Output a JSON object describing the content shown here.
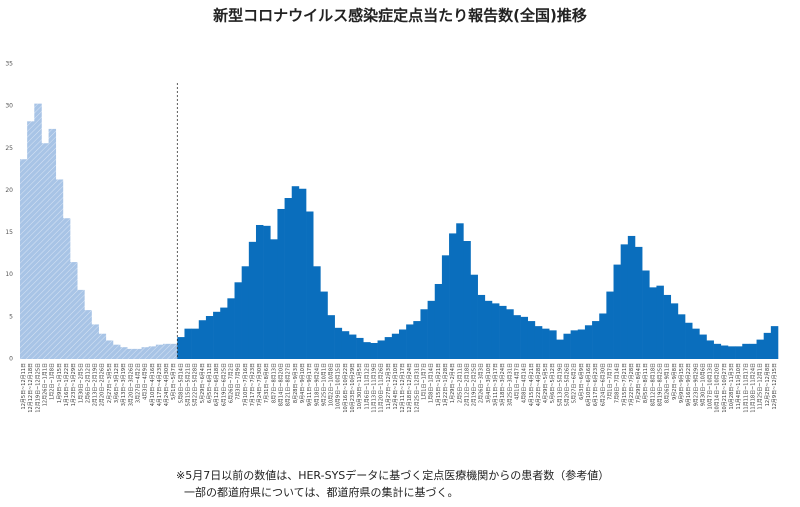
{
  "chart_data": {
    "type": "bar",
    "title": "新型コロナウイルス感染症定点当たり報告数(全国)推移",
    "notes": [
      "※5月7日以前の数値は、HER-SYSデータに基づく定点医療機関からの患者数（参考値）",
      "一部の都道府県については、都道府県の集計に基づく。"
    ],
    "categories": [
      "12月5日~12月11日",
      "12月12日~12月18日",
      "12月19日~12月25日",
      "12月26日~1月1日",
      "1月2日~1月8日",
      "1月9日~1月15日",
      "1月16日~1月22日",
      "1月23日~1月29日",
      "1月30日~2月5日",
      "2月6日~2月12日",
      "2月13日~2月19日",
      "2月20日~2月26日",
      "2月27日~3月5日",
      "3月6日~3月12日",
      "3月13日~3月19日",
      "3月20日~3月26日",
      "3月27日~4月2日",
      "4月3日~4月9日",
      "4月10日~4月16日",
      "4月17日~4月23日",
      "4月24日~4月30日",
      "5月1日~5月7日",
      "5月8日~5月14日",
      "5月15日~5月21日",
      "5月22日~5月28日",
      "5月29日~6月4日",
      "6月5日~6月11日",
      "6月12日~6月18日",
      "6月19日~6月25日",
      "6月26日~7月2日",
      "7月3日~7月9日",
      "7月10日~7月16日",
      "7月17日~7月23日",
      "7月24日~7月30日",
      "7月31日~8月6日",
      "8月7日~8月13日",
      "8月14日~8月20日",
      "8月21日~8月27日",
      "8月28日~9月3日",
      "9月4日~9月10日",
      "9月11日~9月17日",
      "9月18日~9月24日",
      "9月25日~10月1日",
      "10月2日~10月8日",
      "10月9日~10月15日",
      "10月16日~10月22日",
      "10月23日~10月29日",
      "10月30日~11月5日",
      "11月6日~11月12日",
      "11月13日~11月19日",
      "11月20日~11月26日",
      "11月27日~12月3日",
      "12月4日~12月10日",
      "12月11日~12月17日",
      "12月18日~12月24日",
      "12月25日~12月31日",
      "1月1日~1月7日",
      "1月8日~1月14日",
      "1月15日~1月21日",
      "1月22日~1月28日",
      "1月29日~2月4日",
      "2月5日~2月11日",
      "2月12日~2月18日",
      "2月19日~2月25日",
      "2月26日~3月3日",
      "3月4日~3月10日",
      "3月11日~3月17日",
      "3月18日~3月24日",
      "3月25日~3月31日",
      "4月1日~4月7日",
      "4月8日~4月14日",
      "4月15日~4月21日",
      "4月22日~4月28日",
      "4月29日~5月5日",
      "5月6日~5月12日",
      "5月13日~5月19日",
      "5月20日~5月26日",
      "5月27日~6月2日",
      "6月3日~6月9日",
      "6月10日~6月16日",
      "6月17日~6月23日",
      "6月24日~6月30日",
      "7月1日~7月7日",
      "7月8日~7月14日",
      "7月15日~7月21日",
      "7月22日~7月28日",
      "7月29日~8月4日",
      "8月5日~8月11日",
      "8月12日~8月18日",
      "8月19日~8月25日",
      "8月26日~9月1日",
      "9月2日~9月8日",
      "9月9日~9月15日",
      "9月16日~9月22日",
      "9月23日~9月29日",
      "9月30日~10月6日",
      "10月7日~10月13日",
      "10月14日~10月20日",
      "10月21日~10月27日",
      "10月28日~11月3日",
      "11月4日~11月10日",
      "11月11日~11月17日",
      "11月18日~11月24日",
      "11月25日~12月1日",
      "12月2日~12月8日",
      "12月9日~12月15日"
    ],
    "series": [
      {
        "color": "#a8c4e6",
        "hatched": true,
        "values": [
          23.7,
          28.2,
          30.3,
          25.6,
          27.3,
          21.3,
          16.7,
          11.5,
          8.2,
          5.8,
          4.1,
          3.0,
          2.2,
          1.7,
          1.4,
          1.2,
          1.2,
          1.4,
          1.5,
          1.7,
          1.8,
          1.8,
          null,
          null,
          null,
          null,
          null,
          null,
          null,
          null,
          null,
          null,
          null,
          null,
          null,
          null,
          null,
          null,
          null,
          null,
          null,
          null,
          null,
          null,
          null,
          null,
          null,
          null,
          null,
          null,
          null,
          null,
          null,
          null,
          null,
          null,
          null,
          null,
          null,
          null,
          null,
          null,
          null,
          null,
          null,
          null,
          null,
          null,
          null,
          null,
          null,
          null,
          null,
          null,
          null,
          null,
          null,
          null,
          null,
          null,
          null,
          null,
          null,
          null,
          null,
          null,
          null,
          null,
          null,
          null,
          null,
          null,
          null,
          null,
          null,
          null,
          null,
          null,
          null,
          null,
          null,
          null,
          null,
          null,
          null,
          null
        ]
      },
      {
        "color": "#0a6ebd",
        "hatched": false,
        "values": [
          null,
          null,
          null,
          null,
          null,
          null,
          null,
          null,
          null,
          null,
          null,
          null,
          null,
          null,
          null,
          null,
          null,
          null,
          null,
          null,
          null,
          null,
          2.6,
          3.6,
          3.6,
          4.6,
          5.1,
          5.6,
          6.1,
          7.2,
          9.1,
          11.0,
          13.9,
          15.9,
          15.8,
          14.2,
          17.8,
          19.1,
          20.5,
          20.2,
          17.5,
          11.0,
          8.0,
          5.2,
          3.7,
          3.3,
          2.9,
          2.5,
          2.0,
          1.9,
          2.2,
          2.6,
          3.0,
          3.5,
          4.1,
          4.5,
          5.9,
          6.9,
          8.9,
          12.3,
          14.9,
          16.1,
          14.0,
          10.0,
          7.6,
          6.9,
          6.6,
          6.3,
          5.9,
          5.2,
          5.0,
          4.5,
          3.9,
          3.6,
          3.4,
          2.3,
          3.0,
          3.4,
          3.5,
          4.0,
          4.5,
          5.4,
          8.0,
          11.2,
          13.6,
          14.6,
          13.3,
          10.5,
          8.5,
          8.7,
          7.6,
          6.6,
          5.3,
          4.3,
          3.6,
          2.9,
          2.2,
          1.8,
          1.6,
          1.5,
          1.5,
          1.8,
          1.8,
          2.3,
          3.1,
          3.9
        ]
      }
    ],
    "ylim": [
      0,
      35
    ],
    "yticks": [
      0,
      5,
      10,
      15,
      20,
      25,
      30,
      35
    ],
    "grid": false
  }
}
